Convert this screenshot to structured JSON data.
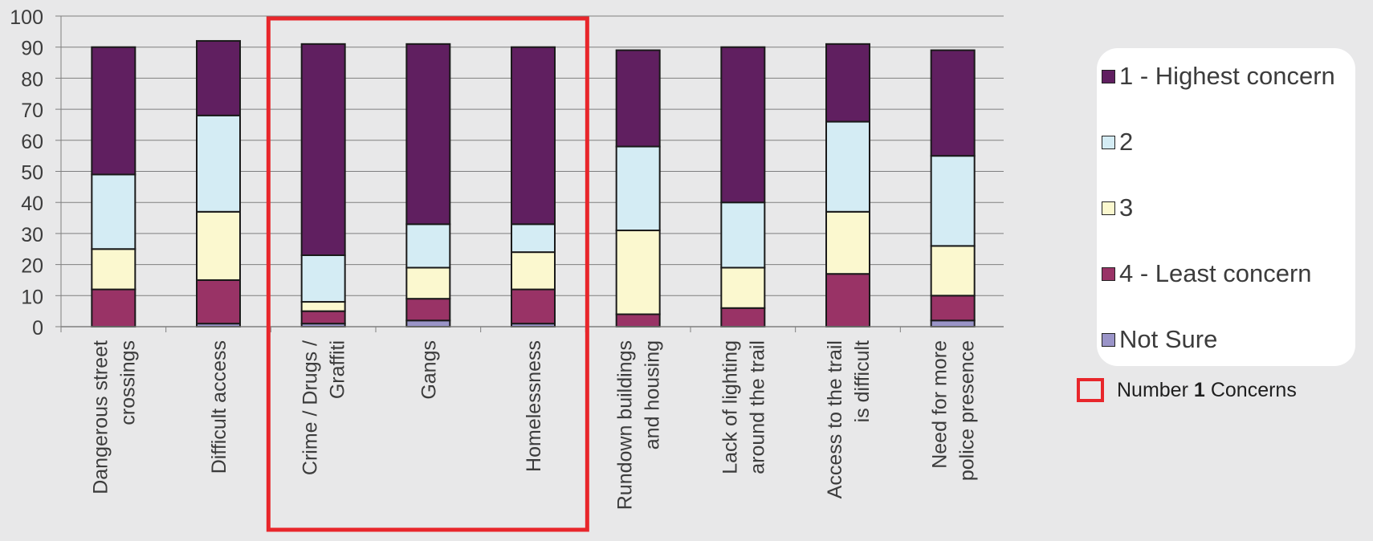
{
  "chart_data": {
    "type": "bar",
    "stacked": true,
    "categories": [
      [
        "Dangerous street",
        "crossings"
      ],
      [
        "Difficult access"
      ],
      [
        "Crime / Drugs /",
        "Graffiti"
      ],
      [
        "Gangs"
      ],
      [
        "Homelessness"
      ],
      [
        "Rundown buildings",
        "and housing"
      ],
      [
        "Lack of lighting",
        "around the trail"
      ],
      [
        "Access to the trail",
        "is difficult"
      ],
      [
        "Need for more",
        "police presence"
      ]
    ],
    "series": [
      {
        "name": "Not Sure",
        "color": "#9a94c8",
        "values": [
          0,
          1,
          1,
          2,
          1,
          0,
          0,
          0,
          2
        ]
      },
      {
        "name": "4 - Least concern",
        "color": "#993366",
        "values": [
          12,
          14,
          4,
          7,
          11,
          4,
          6,
          17,
          8
        ]
      },
      {
        "name": "3",
        "color": "#fbf8cf",
        "values": [
          13,
          22,
          3,
          10,
          12,
          27,
          13,
          20,
          16
        ]
      },
      {
        "name": "2",
        "color": "#d4ecf4",
        "values": [
          24,
          31,
          15,
          14,
          9,
          27,
          21,
          29,
          29
        ]
      },
      {
        "name": "1 - Highest concern",
        "color": "#601f60",
        "values": [
          41,
          24,
          68,
          58,
          57,
          31,
          50,
          25,
          34
        ]
      }
    ],
    "ylim": [
      0,
      100
    ],
    "yticks": [
      "0",
      "10",
      "20",
      "30",
      "40",
      "50",
      "60",
      "70",
      "80",
      "90",
      "100"
    ],
    "grid": true,
    "legend_position": "right",
    "highlight": {
      "categories": [
        "Crime / Drugs / Graffiti",
        "Gangs",
        "Homelessness"
      ],
      "color": "#e8262b"
    }
  },
  "legend": {
    "items": [
      {
        "label": "1 - Highest concern",
        "color": "#601f60"
      },
      {
        "label": "2",
        "color": "#d4ecf4"
      },
      {
        "label": "3",
        "color": "#fbf8cf"
      },
      {
        "label": "4 - Least concern",
        "color": "#993366"
      },
      {
        "label": "Not Sure",
        "color": "#9a94c8"
      }
    ],
    "highlight_label_pre": "Number",
    "highlight_label_bold": "1",
    "highlight_label_post": "Concerns"
  }
}
